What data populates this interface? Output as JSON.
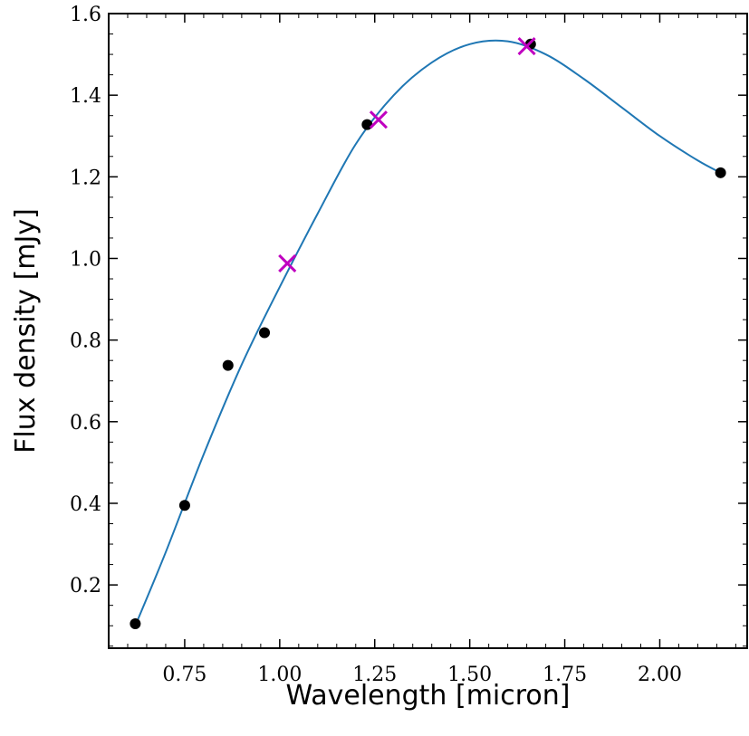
{
  "chart_data": {
    "type": "scatter",
    "xlabel": "Wavelength [micron]",
    "ylabel": "Flux density [mJy]",
    "xlim": [
      0.55,
      2.23
    ],
    "ylim": [
      0.045,
      1.6
    ],
    "xticks": [
      0.75,
      1.0,
      1.25,
      1.5,
      1.75,
      2.0
    ],
    "xtick_labels": [
      "0.75",
      "1.00",
      "1.25",
      "1.50",
      "1.75",
      "2.00"
    ],
    "yticks": [
      0.2,
      0.4,
      0.6,
      0.8,
      1.0,
      1.2,
      1.4,
      1.6
    ],
    "ytick_labels": [
      "0.2",
      "0.4",
      "0.6",
      "0.8",
      "1.0",
      "1.2",
      "1.4",
      "1.6"
    ],
    "grid": false,
    "series": [
      {
        "kind": "line",
        "color": "#1f77b4",
        "x": [
          0.62,
          0.7,
          0.8,
          0.9,
          1.0,
          1.1,
          1.2,
          1.3,
          1.4,
          1.5,
          1.6,
          1.7,
          1.8,
          1.9,
          2.0,
          2.1,
          2.16
        ],
        "y": [
          0.1,
          0.28,
          0.52,
          0.74,
          0.93,
          1.11,
          1.28,
          1.4,
          1.48,
          1.525,
          1.532,
          1.5,
          1.44,
          1.37,
          1.3,
          1.24,
          1.21
        ]
      },
      {
        "kind": "scatter",
        "marker": "circle",
        "color": "#000000",
        "x": [
          0.62,
          0.75,
          0.864,
          0.96,
          1.23,
          1.66,
          2.16
        ],
        "y": [
          0.105,
          0.395,
          0.738,
          0.818,
          1.328,
          1.525,
          1.21
        ]
      },
      {
        "kind": "scatter",
        "marker": "x",
        "color": "#c000c0",
        "x": [
          1.02,
          1.26,
          1.65
        ],
        "y": [
          0.988,
          1.34,
          1.52
        ]
      }
    ]
  }
}
